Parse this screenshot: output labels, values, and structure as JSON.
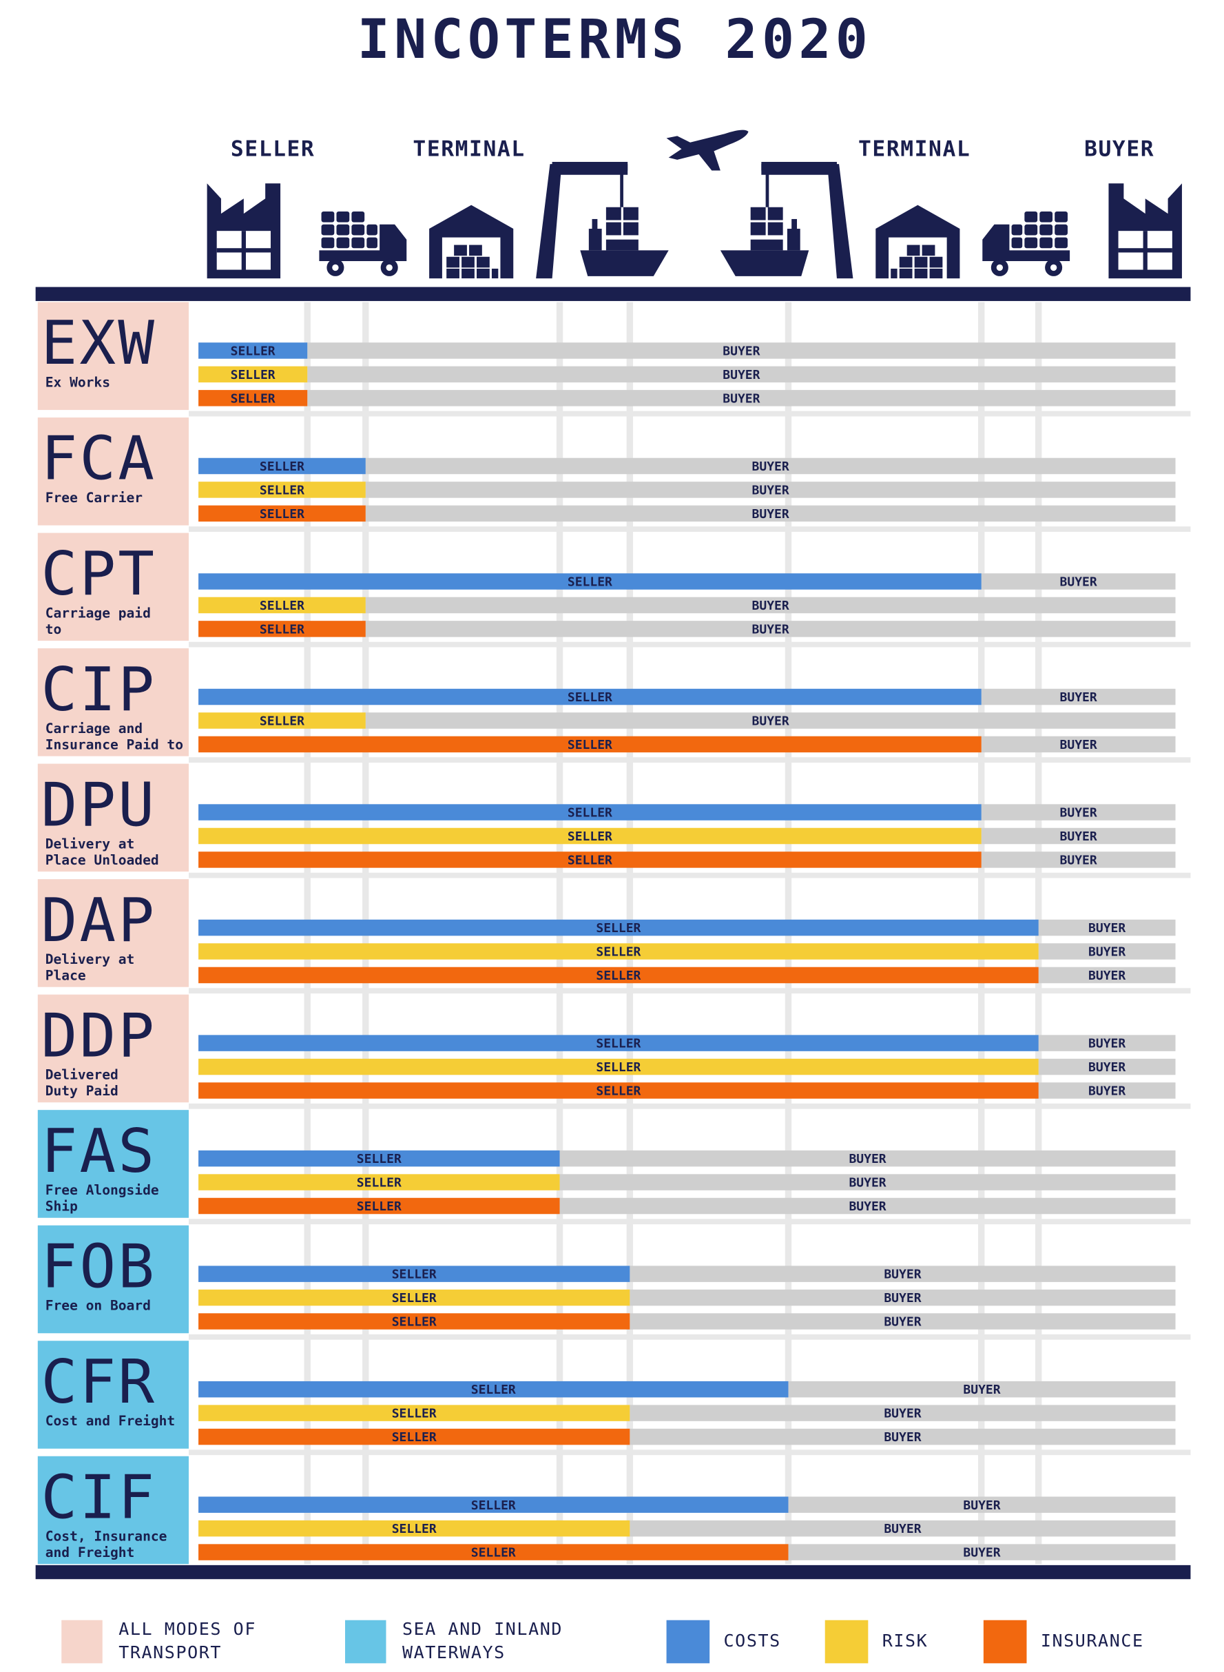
{
  "header": {
    "title": "INCOTERMS 2020",
    "labels": [
      "SELLER",
      "TERMINAL",
      "TERMINAL",
      "BUYER"
    ]
  },
  "seller_label": "SELLER",
  "buyer_label": "BUYER",
  "buyer_color": "#cfcfcf",
  "responsibilities": [
    {
      "label": "COSTS",
      "color": "#4a8ad8"
    },
    {
      "label": "RISK",
      "color": "#f5cd36"
    },
    {
      "label": "INSURANCE",
      "color": "#f2680f"
    }
  ],
  "modes": [
    {
      "label": [
        "ALL MODES OF",
        "TRANSPORT"
      ],
      "color": "#f6d5cb",
      "terms": [
        {
          "code": "EXW",
          "name": [
            "Ex Works"
          ],
          "splits": [
            1,
            1,
            1
          ]
        },
        {
          "code": "FCA",
          "name": [
            "Free Carrier"
          ],
          "splits": [
            2,
            2,
            2
          ]
        },
        {
          "code": "CPT",
          "name": [
            "Carriage paid",
            "to"
          ],
          "splits": [
            6,
            2,
            2
          ]
        },
        {
          "code": "CIP",
          "name": [
            "Carriage and",
            "Insurance Paid to"
          ],
          "splits": [
            6,
            2,
            6
          ]
        },
        {
          "code": "DPU",
          "name": [
            "Delivery at",
            "Place Unloaded"
          ],
          "splits": [
            6,
            6,
            6
          ]
        },
        {
          "code": "DAP",
          "name": [
            "Delivery at",
            "Place"
          ],
          "splits": [
            7,
            7,
            7
          ]
        },
        {
          "code": "DDP",
          "name": [
            "Delivered",
            "Duty Paid"
          ],
          "splits": [
            7,
            7,
            7
          ]
        }
      ]
    },
    {
      "label": [
        "SEA AND INLAND",
        "WATERWAYS"
      ],
      "color": "#67c5e6",
      "terms": [
        {
          "code": "FAS",
          "name": [
            "Free Alongside",
            "Ship"
          ],
          "splits": [
            3,
            3,
            3
          ]
        },
        {
          "code": "FOB",
          "name": [
            "Free on Board"
          ],
          "splits": [
            4,
            4,
            4
          ]
        },
        {
          "code": "CFR",
          "name": [
            "Cost and Freight"
          ],
          "splits": [
            5,
            4,
            4
          ]
        },
        {
          "code": "CIF",
          "name": [
            "Cost, Insurance",
            "and Freight"
          ],
          "splits": [
            5,
            4,
            5
          ]
        }
      ]
    }
  ]
}
